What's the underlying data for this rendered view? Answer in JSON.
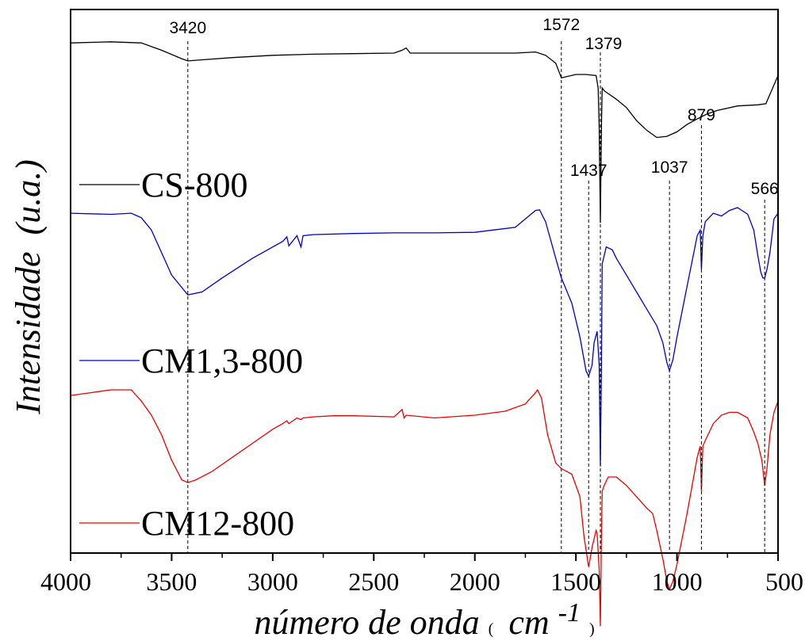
{
  "chart_data": {
    "type": "line",
    "xlabel_main": "número de onda",
    "xlabel_paren_open": "(",
    "xlabel_unit": "cm",
    "xlabel_sup": "-1",
    "xlabel_paren_close": ")",
    "ylabel_main": "Intensidade",
    "ylabel_unit": "(u.a.)",
    "xlim": [
      4000,
      500
    ],
    "x_reversed": true,
    "y_ticks_shown": false,
    "grid": false,
    "x_ticks": [
      4000,
      3500,
      3000,
      2500,
      2000,
      1500,
      1000,
      500
    ],
    "peak_markers": [
      {
        "x": 3420,
        "label": "3420"
      },
      {
        "x": 1572,
        "label": "1572"
      },
      {
        "x": 1437,
        "label": "1437"
      },
      {
        "x": 1379,
        "label": "1379"
      },
      {
        "x": 1037,
        "label": "1037"
      },
      {
        "x": 879,
        "label": "879"
      },
      {
        "x": 566,
        "label": "566"
      }
    ],
    "series": [
      {
        "name": "CS-800",
        "color": "#000000",
        "x": [
          4000,
          3800,
          3650,
          3550,
          3450,
          3420,
          3350,
          3200,
          3000,
          2800,
          2600,
          2400,
          2360,
          2340,
          2320,
          2200,
          2000,
          1800,
          1700,
          1650,
          1600,
          1572,
          1500,
          1450,
          1400,
          1390,
          1385,
          1379,
          1374,
          1370,
          1360,
          1340,
          1300,
          1250,
          1200,
          1150,
          1100,
          1050,
          1000,
          950,
          900,
          850,
          800,
          700,
          600,
          560,
          500
        ],
        "y": [
          -2.0,
          -1.8,
          -2.0,
          -3.3,
          -4.8,
          -5.2,
          -5.0,
          -4.6,
          -4.2,
          -4.0,
          -3.9,
          -3.8,
          -3.3,
          -2.9,
          -3.8,
          -3.8,
          -3.8,
          -3.8,
          -3.6,
          -4.2,
          -5.6,
          -8.2,
          -7.6,
          -7.6,
          -7.8,
          -10.0,
          -17.0,
          -34.0,
          -17.0,
          -10.0,
          -10.5,
          -11.0,
          -12.0,
          -13.5,
          -15.8,
          -17.5,
          -18.8,
          -18.6,
          -17.8,
          -16.5,
          -15.5,
          -14.6,
          -14.0,
          -13.2,
          -13.0,
          -12.8,
          -7.8
        ]
      },
      {
        "name": "CM1,3-800",
        "color": "#0000cc",
        "x": [
          4000,
          3800,
          3700,
          3650,
          3600,
          3500,
          3420,
          3350,
          3250,
          3100,
          2950,
          2930,
          2920,
          2880,
          2860,
          2850,
          2800,
          2600,
          2400,
          2200,
          2000,
          1800,
          1700,
          1680,
          1650,
          1600,
          1572,
          1520,
          1480,
          1450,
          1437,
          1420,
          1410,
          1395,
          1385,
          1379,
          1374,
          1370,
          1350,
          1320,
          1300,
          1250,
          1200,
          1150,
          1100,
          1070,
          1050,
          1037,
          1020,
          1000,
          950,
          900,
          885,
          879,
          872,
          860,
          820,
          780,
          740,
          700,
          650,
          620,
          600,
          585,
          575,
          566,
          555,
          540,
          520,
          500
        ],
        "y": [
          -1.0,
          -1.2,
          -1.0,
          -1.8,
          -4.0,
          -12.0,
          -15.5,
          -15.0,
          -12.5,
          -9.0,
          -6.0,
          -5.2,
          -6.8,
          -5.0,
          -7.0,
          -5.0,
          -4.8,
          -4.6,
          -4.5,
          -4.5,
          -4.4,
          -3.5,
          -0.5,
          -0.4,
          -2.5,
          -9.0,
          -12.5,
          -17.0,
          -23.0,
          -29.0,
          -30.0,
          -28.0,
          -24.0,
          -22.0,
          -28.0,
          -46.0,
          -28.0,
          -10.0,
          -7.0,
          -7.5,
          -9.0,
          -12.0,
          -15.0,
          -18.0,
          -21.0,
          -24.0,
          -27.5,
          -29.0,
          -27.0,
          -23.0,
          -14.0,
          -5.0,
          -4.0,
          -11.0,
          -5.0,
          -2.5,
          -1.0,
          -1.5,
          -0.5,
          0.0,
          -1.2,
          -4.0,
          -8.5,
          -11.5,
          -12.5,
          -12.5,
          -11.0,
          -8.0,
          -2.0,
          -1.0
        ]
      },
      {
        "name": "CM12-800",
        "color": "#ee0000",
        "x": [
          4000,
          3900,
          3800,
          3700,
          3650,
          3600,
          3550,
          3500,
          3450,
          3420,
          3380,
          3300,
          3200,
          3100,
          3000,
          2950,
          2930,
          2920,
          2880,
          2860,
          2850,
          2800,
          2700,
          2600,
          2400,
          2360,
          2350,
          2340,
          2200,
          2000,
          1850,
          1750,
          1700,
          1690,
          1670,
          1640,
          1600,
          1572,
          1520,
          1480,
          1460,
          1437,
          1420,
          1400,
          1395,
          1385,
          1379,
          1374,
          1370,
          1360,
          1340,
          1300,
          1250,
          1200,
          1150,
          1120,
          1100,
          1070,
          1050,
          1037,
          1020,
          1000,
          950,
          900,
          885,
          879,
          872,
          860,
          820,
          780,
          740,
          700,
          650,
          620,
          600,
          580,
          566,
          555,
          540,
          520,
          500
        ],
        "y": [
          -1.0,
          -0.5,
          0.0,
          0.0,
          -2.0,
          -4.5,
          -8.0,
          -12.5,
          -16.0,
          -16.5,
          -16.0,
          -14.5,
          -12.0,
          -9.5,
          -7.0,
          -6.0,
          -5.5,
          -6.0,
          -5.0,
          -5.3,
          -5.0,
          -4.8,
          -4.6,
          -4.6,
          -4.8,
          -3.5,
          -5.0,
          -4.5,
          -5.0,
          -4.5,
          -3.8,
          -2.5,
          -0.5,
          0.0,
          -1.5,
          -8.0,
          -13.0,
          -14.0,
          -15.0,
          -19.0,
          -26.0,
          -31.5,
          -28.0,
          -25.0,
          -25.5,
          -32.0,
          -42.0,
          -26.0,
          -18.0,
          -17.0,
          -15.5,
          -15.5,
          -17.0,
          -19.0,
          -21.0,
          -22.0,
          -25.0,
          -30.0,
          -34.0,
          -35.5,
          -34.0,
          -31.0,
          -22.0,
          -12.0,
          -10.0,
          -18.0,
          -10.0,
          -9.0,
          -6.0,
          -4.5,
          -4.0,
          -4.0,
          -5.0,
          -7.5,
          -9.5,
          -12.5,
          -17.0,
          -14.0,
          -8.0,
          -4.0,
          -2.0
        ]
      }
    ]
  }
}
